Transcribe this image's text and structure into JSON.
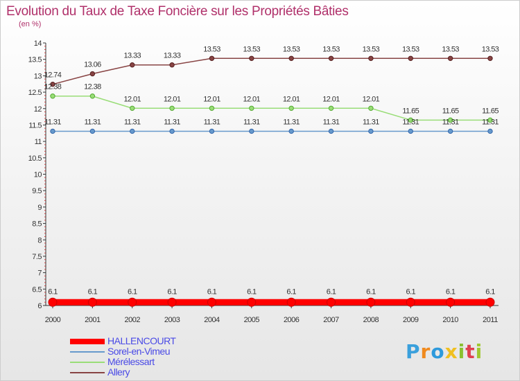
{
  "title": "Evolution du Taux de Taxe Foncière sur les Propriétés Bâties",
  "subtitle": "(en %)",
  "logo": {
    "text": "Proxiti",
    "letters": [
      "P",
      "r",
      "o",
      "x",
      "i",
      "t",
      "i"
    ]
  },
  "chart_data": {
    "type": "line",
    "x": [
      "2000",
      "2001",
      "2002",
      "2003",
      "2004",
      "2005",
      "2006",
      "2007",
      "2008",
      "2009",
      "2010",
      "2011"
    ],
    "ylim": [
      6,
      14
    ],
    "yticks": [
      "6",
      "6.5",
      "7",
      "7.5",
      "8",
      "8.5",
      "9",
      "9.5",
      "10",
      "10.5",
      "11",
      "11.5",
      "12",
      "12.5",
      "13",
      "13.5",
      "14"
    ],
    "grid": false,
    "legend_position": "bottom-left",
    "series": [
      {
        "name": "HALLENCOURT",
        "color": "#ff0000",
        "values": [
          6.1,
          6.1,
          6.1,
          6.1,
          6.1,
          6.1,
          6.1,
          6.1,
          6.1,
          6.1,
          6.1,
          6.1
        ],
        "labels": [
          "6.1",
          "6.1",
          "6.1",
          "6.1",
          "6.1",
          "6.1",
          "6.1",
          "6.1",
          "6.1",
          "6.1",
          "6.1",
          "6.1"
        ]
      },
      {
        "name": "Sorel-en-Vimeu",
        "color": "#6699cc",
        "values": [
          11.31,
          11.31,
          11.31,
          11.31,
          11.31,
          11.31,
          11.31,
          11.31,
          11.31,
          11.31,
          11.31,
          11.31
        ],
        "labels": [
          "11.31",
          "11.31",
          "11.31",
          "11.31",
          "11.31",
          "11.31",
          "11.31",
          "11.31",
          "11.31",
          "11.31",
          "11.31",
          "11.31"
        ]
      },
      {
        "name": "Mérélessart",
        "color": "#99dd77",
        "values": [
          12.38,
          12.38,
          12.01,
          12.01,
          12.01,
          12.01,
          12.01,
          12.01,
          12.01,
          11.65,
          11.65,
          11.65
        ],
        "labels": [
          "12.38",
          "12.38",
          "12.01",
          "12.01",
          "12.01",
          "12.01",
          "12.01",
          "12.01",
          "12.01",
          "11.65",
          "11.65",
          "11.65"
        ]
      },
      {
        "name": "Allery",
        "color": "#884444",
        "values": [
          12.74,
          13.06,
          13.33,
          13.33,
          13.53,
          13.53,
          13.53,
          13.53,
          13.53,
          13.53,
          13.53,
          13.53
        ],
        "labels": [
          "12.74",
          "13.06",
          "13.33",
          "13.33",
          "13.53",
          "13.53",
          "13.53",
          "13.53",
          "13.53",
          "13.53",
          "13.53",
          "13.53"
        ]
      }
    ]
  }
}
